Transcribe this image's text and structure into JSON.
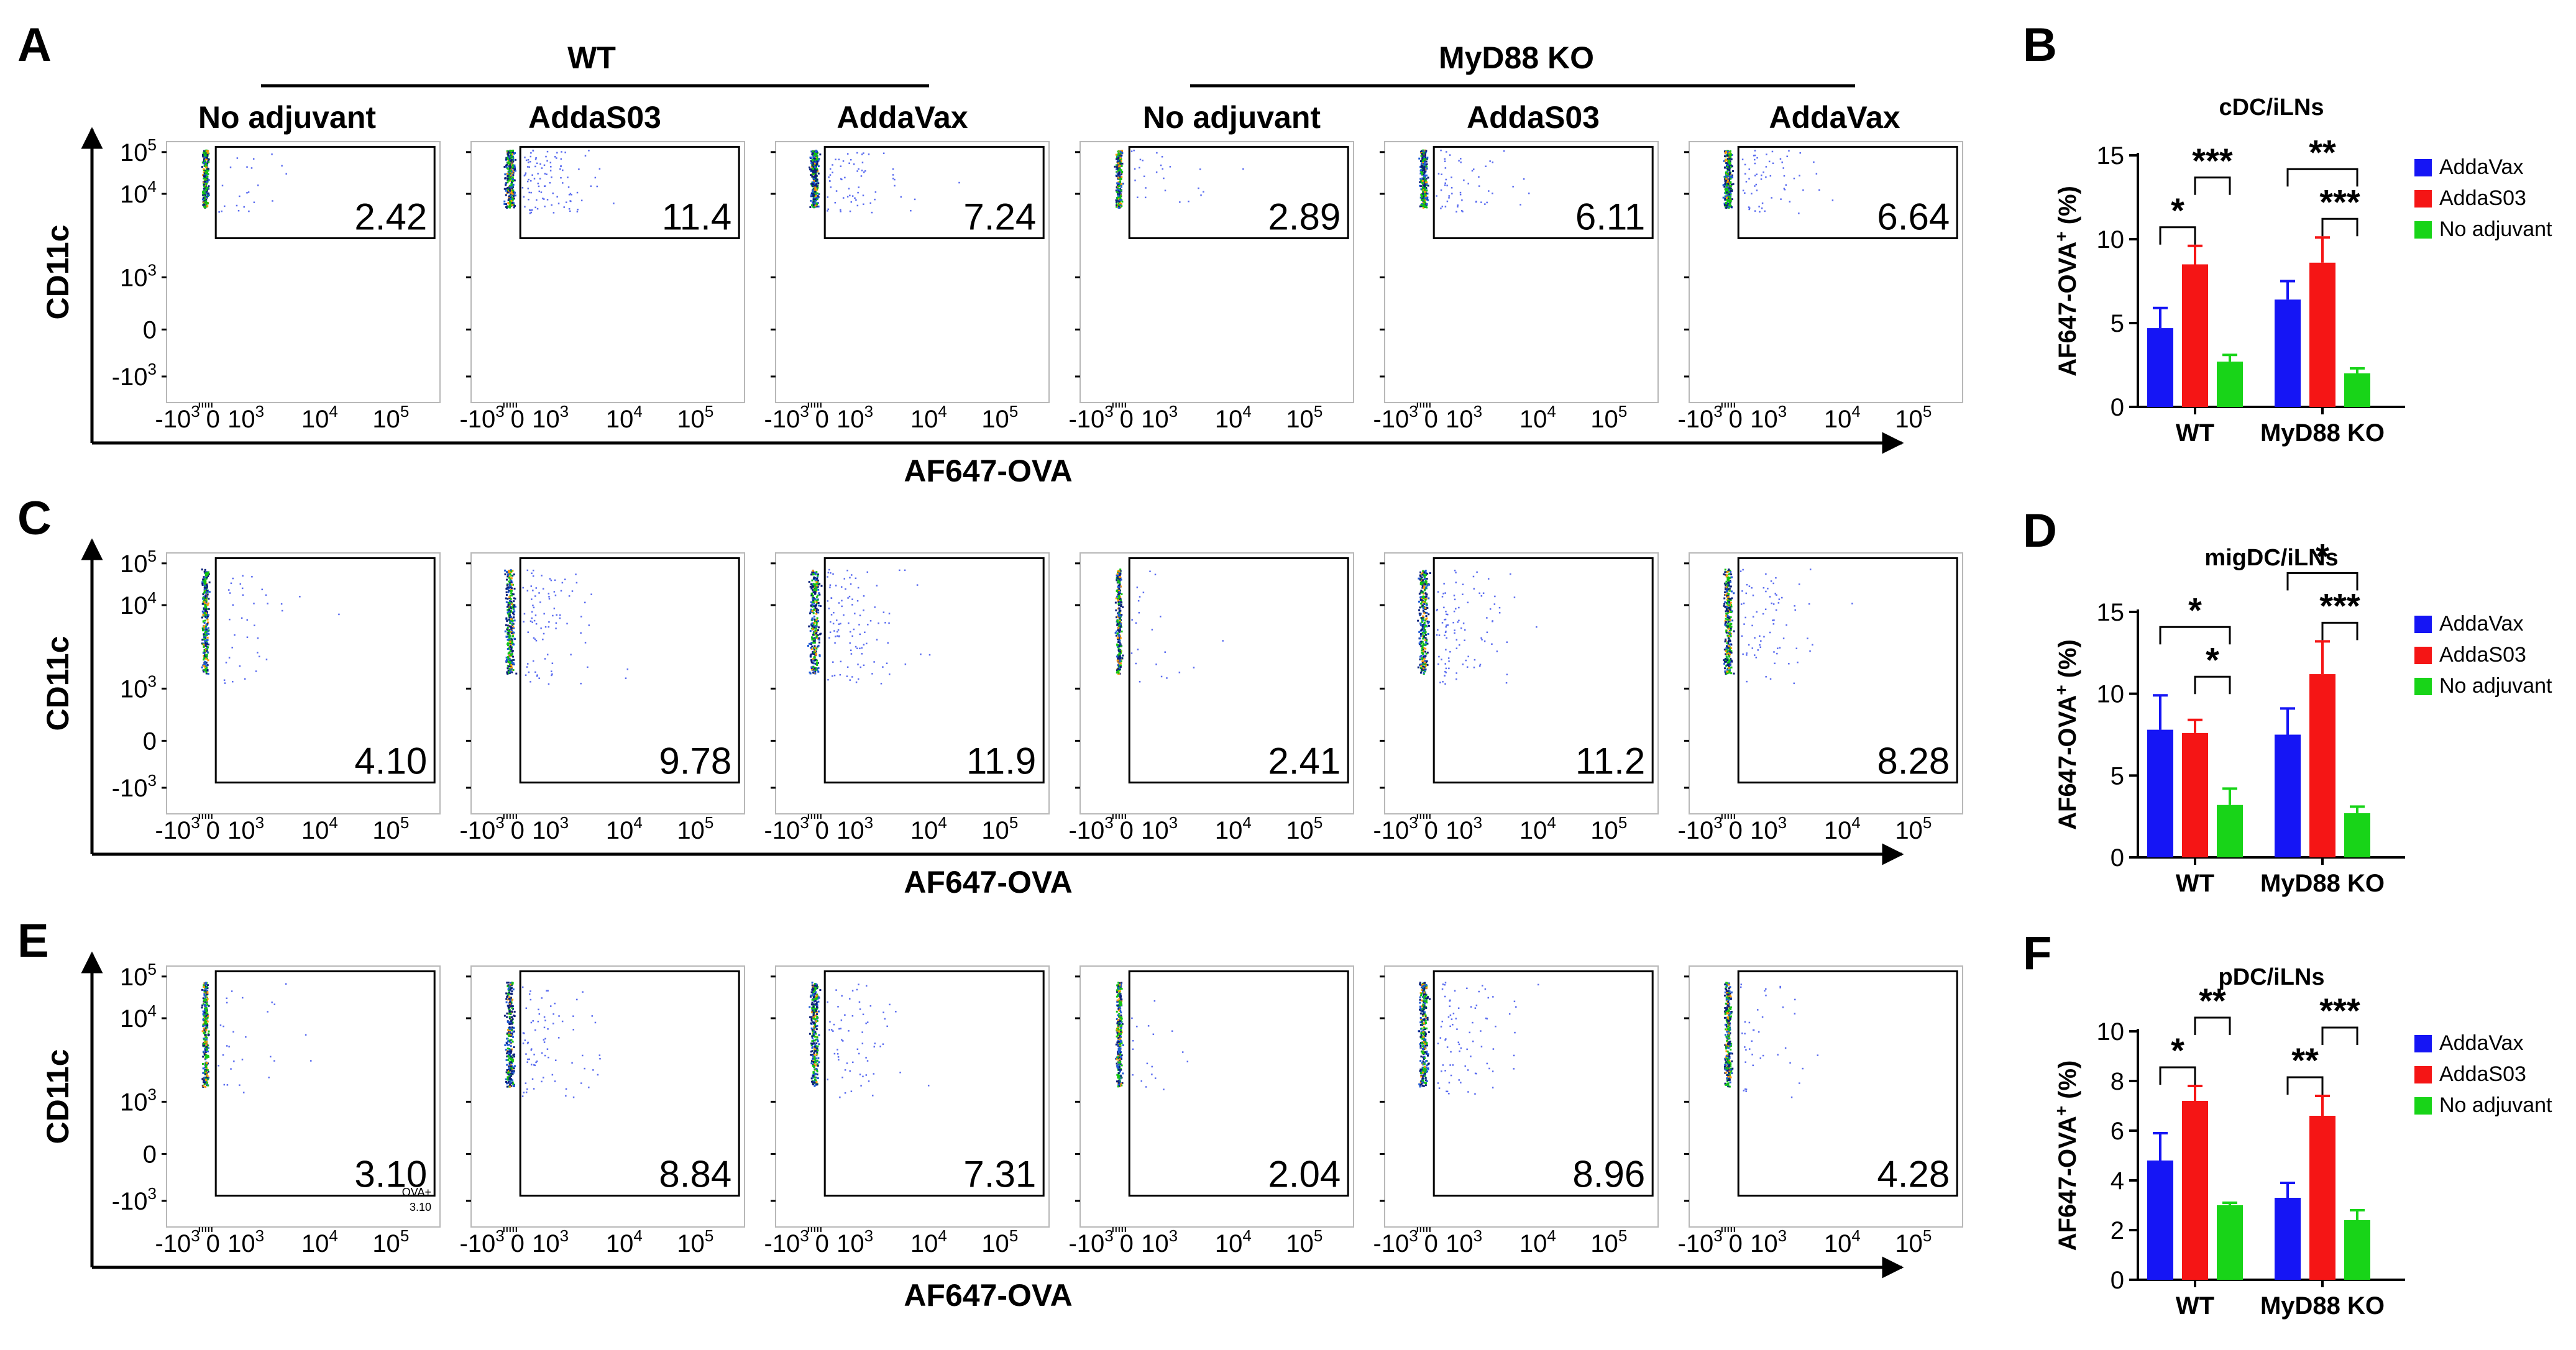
{
  "figure": {
    "panel_letters": [
      "A",
      "B",
      "C",
      "D",
      "E",
      "F"
    ],
    "groups": [
      "WT",
      "MyD88 KO"
    ],
    "conditions": [
      "No adjuvant",
      "AddaS03",
      "AddaVax",
      "No adjuvant",
      "AddaS03",
      "AddaVax"
    ],
    "y_axis_label": "CD11c",
    "x_axis_label": "AF647-OVA",
    "flow_tick_labels": {
      "y": [
        "10^5",
        "10^4",
        "10^3",
        "0",
        "-10^3"
      ],
      "x": [
        "-10^3",
        "0",
        "10^3",
        "10^4",
        "10^5"
      ]
    },
    "flow_rows": [
      {
        "row": "A",
        "gate_values": [
          "2.42",
          "11.4",
          "7.24",
          "2.89",
          "6.11",
          "6.64"
        ],
        "extra_label": null
      },
      {
        "row": "C",
        "gate_values": [
          "4.10",
          "9.78",
          "11.9",
          "2.41",
          "11.2",
          "8.28"
        ],
        "extra_label": null
      },
      {
        "row": "E",
        "gate_values": [
          "3.10",
          "8.84",
          "7.31",
          "2.04",
          "8.96",
          "4.28"
        ],
        "extra_label": {
          "line1": "OVA+",
          "line2": "3.10"
        }
      }
    ],
    "colors": {
      "AddaVax": "#1515f5",
      "AddaS03": "#f51515",
      "No adjuvant": "#18d418",
      "axis": "#000000"
    }
  },
  "chart_data": [
    {
      "panel": "B",
      "type": "bar",
      "title": "cDC/iLNs",
      "ylabel": "AF647-OVA+ (%)",
      "ylim": [
        0,
        15
      ],
      "yticks": [
        0,
        5,
        10,
        15
      ],
      "categories": [
        "WT",
        "MyD88 KO"
      ],
      "series": [
        {
          "name": "AddaVax",
          "values": [
            4.7,
            6.4
          ],
          "errors": [
            1.2,
            1.1
          ]
        },
        {
          "name": "AddaS03",
          "values": [
            8.5,
            8.6
          ],
          "errors": [
            1.1,
            1.5
          ]
        },
        {
          "name": "No adjuvant",
          "values": [
            2.7,
            2.0
          ],
          "errors": [
            0.4,
            0.3
          ]
        }
      ],
      "legend": [
        "AddaVax",
        "AddaS03",
        "No adjuvant"
      ],
      "significance": [
        {
          "group": 0,
          "from": 0,
          "to": 1,
          "label": "*",
          "level": 1
        },
        {
          "group": 0,
          "from": 1,
          "to": 2,
          "label": "***",
          "level": 2
        },
        {
          "group": 1,
          "from": 0,
          "to": 2,
          "label": "**",
          "level": 2
        },
        {
          "group": 1,
          "from": 1,
          "to": 2,
          "label": "***",
          "level": 1
        }
      ]
    },
    {
      "panel": "D",
      "type": "bar",
      "title": "migDC/iLNs",
      "ylabel": "AF647-OVA+ (%)",
      "ylim": [
        0,
        15
      ],
      "yticks": [
        0,
        5,
        10,
        15
      ],
      "categories": [
        "WT",
        "MyD88 KO"
      ],
      "series": [
        {
          "name": "AddaVax",
          "values": [
            7.8,
            7.5
          ],
          "errors": [
            2.1,
            1.6
          ]
        },
        {
          "name": "AddaS03",
          "values": [
            7.6,
            11.2
          ],
          "errors": [
            0.8,
            2.0
          ]
        },
        {
          "name": "No adjuvant",
          "values": [
            3.2,
            2.7
          ],
          "errors": [
            1.0,
            0.4
          ]
        }
      ],
      "legend": [
        "AddaVax",
        "AddaS03",
        "No adjuvant"
      ],
      "significance": [
        {
          "group": 0,
          "from": 0,
          "to": 2,
          "label": "*",
          "level": 2
        },
        {
          "group": 0,
          "from": 1,
          "to": 2,
          "label": "*",
          "level": 1
        },
        {
          "group": 1,
          "from": 0,
          "to": 2,
          "label": "*",
          "level": 2
        },
        {
          "group": 1,
          "from": 1,
          "to": 2,
          "label": "***",
          "level": 1
        }
      ]
    },
    {
      "panel": "F",
      "type": "bar",
      "title": "pDC/iLNs",
      "ylabel": "AF647-OVA+ (%)",
      "ylim": [
        0,
        10
      ],
      "yticks": [
        0,
        2,
        4,
        6,
        8,
        10
      ],
      "categories": [
        "WT",
        "MyD88 KO"
      ],
      "series": [
        {
          "name": "AddaVax",
          "values": [
            4.8,
            3.3
          ],
          "errors": [
            1.1,
            0.6
          ]
        },
        {
          "name": "AddaS03",
          "values": [
            7.2,
            6.6
          ],
          "errors": [
            0.6,
            0.8
          ]
        },
        {
          "name": "No adjuvant",
          "values": [
            3.0,
            2.4
          ],
          "errors": [
            0.1,
            0.4
          ]
        }
      ],
      "legend": [
        "AddaVax",
        "AddaS03",
        "No adjuvant"
      ],
      "significance": [
        {
          "group": 0,
          "from": 0,
          "to": 1,
          "label": "*",
          "level": 1
        },
        {
          "group": 0,
          "from": 1,
          "to": 2,
          "label": "**",
          "level": 2
        },
        {
          "group": 1,
          "from": 0,
          "to": 1,
          "label": "**",
          "level": 1
        },
        {
          "group": 1,
          "from": 1,
          "to": 2,
          "label": "***",
          "level": 2
        }
      ]
    }
  ]
}
